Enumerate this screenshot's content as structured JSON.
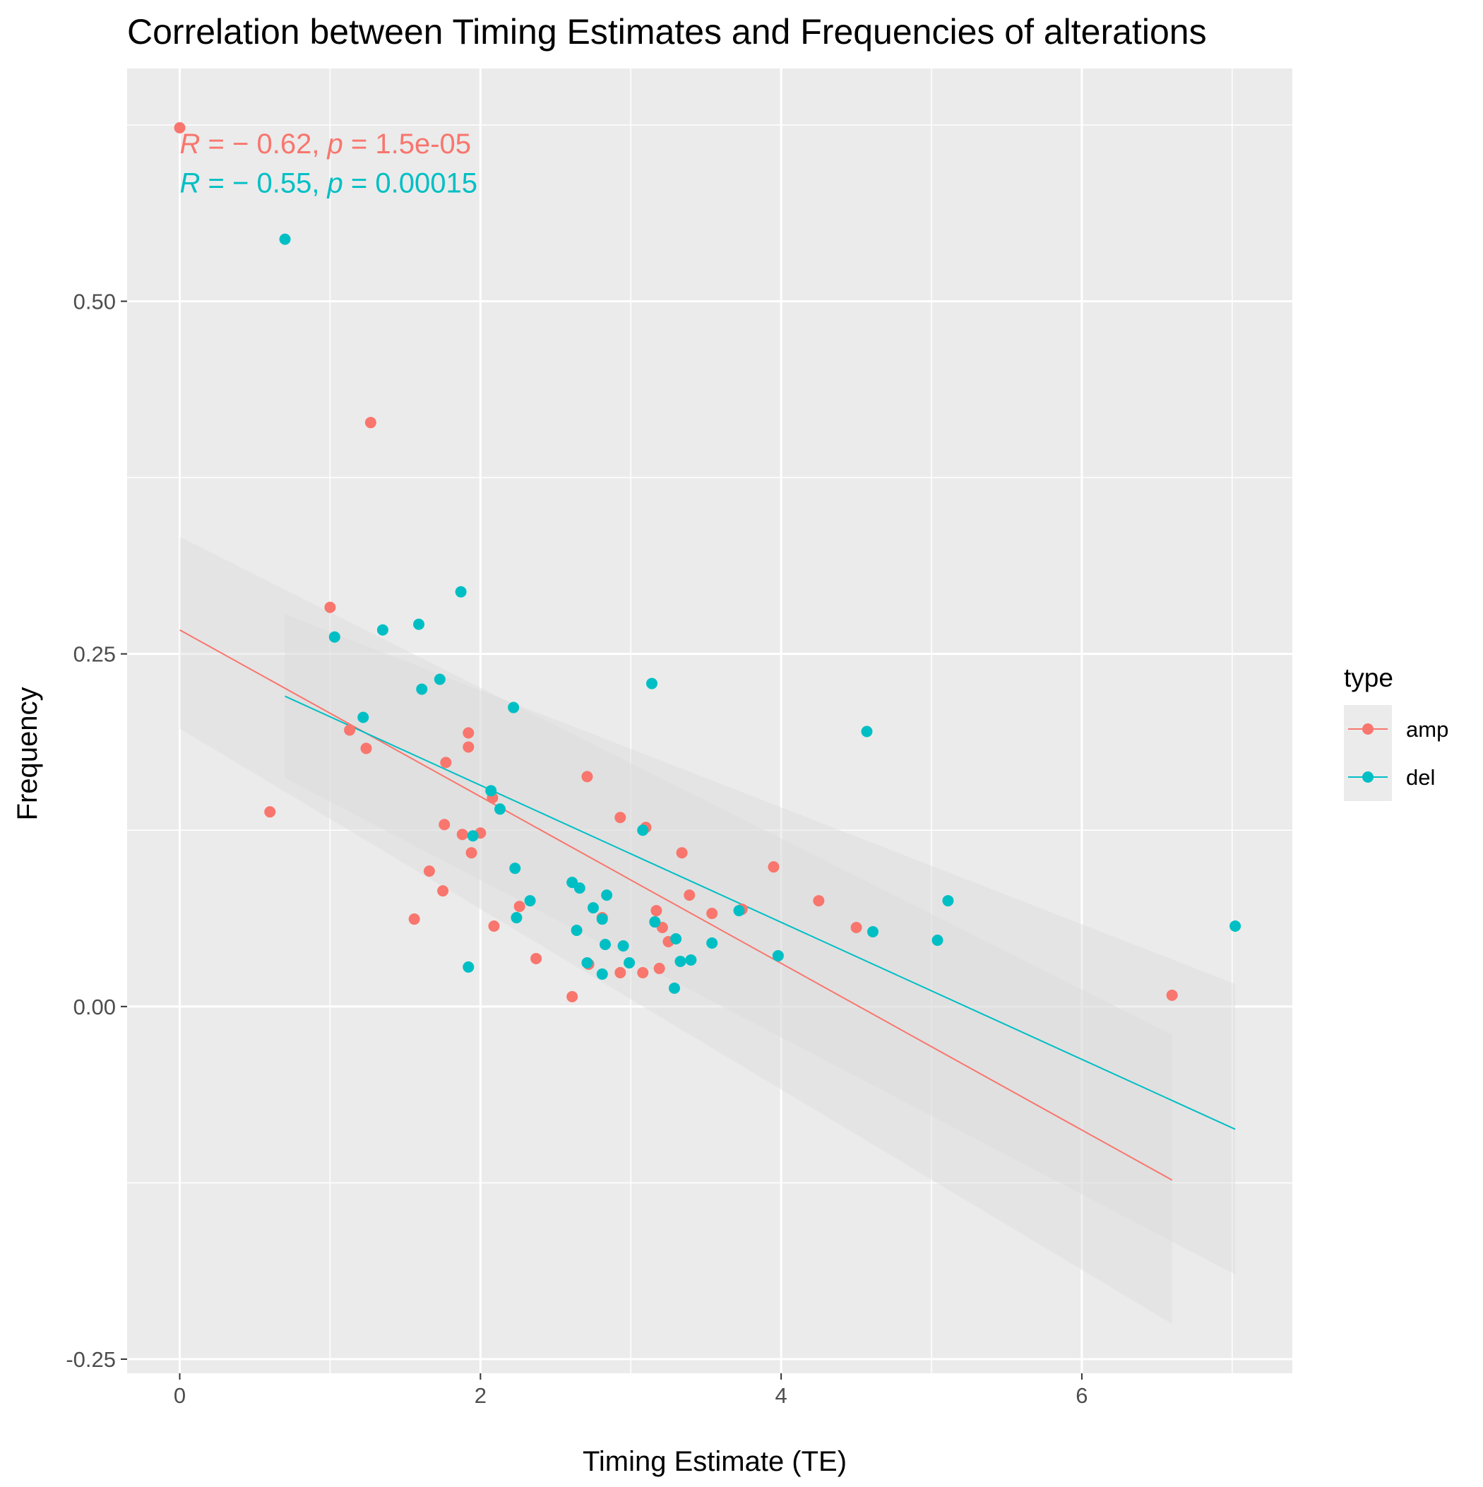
{
  "chart_data": {
    "type": "scatter",
    "title": "Correlation between Timing Estimates and Frequencies of alterations",
    "xlabel": "Timing Estimate (TE)",
    "ylabel": "Frequency",
    "xlim": [
      -0.35,
      7.4
    ],
    "ylim": [
      -0.26,
      0.665
    ],
    "x_ticks": [
      0,
      2,
      4,
      6
    ],
    "x_tick_labels": [
      "0",
      "2",
      "4",
      "6"
    ],
    "y_ticks": [
      -0.25,
      0,
      0.25,
      0.5
    ],
    "y_tick_labels": [
      "-0.25",
      "0.00",
      "0.25",
      "0.50"
    ],
    "grid": true,
    "legend": {
      "title": "type",
      "position": "right"
    },
    "colors": {
      "amp": "#F8766D",
      "del": "#00BFC4",
      "panel": "#EBEBEB",
      "ribbon": "#D9D9D9",
      "grid": "#FFFFFF"
    },
    "annotations": [
      {
        "series": "amp",
        "R": "R",
        "eq": " = − 0.62, ",
        "p": "p",
        "rest": " = 1.5e-05",
        "x": 0.0,
        "y": 0.605
      },
      {
        "series": "del",
        "R": "R",
        "eq": " = − 0.55, ",
        "p": "p",
        "rest": " = 0.00015",
        "x": 0.0,
        "y": 0.577
      }
    ],
    "series": [
      {
        "name": "amp",
        "color": "#F8766D",
        "fit": {
          "x": [
            0.0,
            6.6
          ],
          "y": [
            0.267,
            -0.123
          ],
          "ci_low": [
            0.197,
            -0.225
          ],
          "ci_high": [
            0.333,
            -0.02
          ]
        },
        "points": [
          [
            0.0,
            0.623
          ],
          [
            0.6,
            0.138
          ],
          [
            1.0,
            0.283
          ],
          [
            1.13,
            0.196
          ],
          [
            1.24,
            0.183
          ],
          [
            1.27,
            0.414
          ],
          [
            1.56,
            0.062
          ],
          [
            1.66,
            0.096
          ],
          [
            1.75,
            0.082
          ],
          [
            1.76,
            0.129
          ],
          [
            1.77,
            0.173
          ],
          [
            1.88,
            0.122
          ],
          [
            1.92,
            0.194
          ],
          [
            1.92,
            0.184
          ],
          [
            1.94,
            0.109
          ],
          [
            2.0,
            0.123
          ],
          [
            2.08,
            0.148
          ],
          [
            2.09,
            0.057
          ],
          [
            2.26,
            0.071
          ],
          [
            2.37,
            0.034
          ],
          [
            2.61,
            0.007
          ],
          [
            2.71,
            0.163
          ],
          [
            2.72,
            0.03
          ],
          [
            2.81,
            0.063
          ],
          [
            2.93,
            0.024
          ],
          [
            2.93,
            0.134
          ],
          [
            3.08,
            0.024
          ],
          [
            3.1,
            0.127
          ],
          [
            3.17,
            0.068
          ],
          [
            3.19,
            0.027
          ],
          [
            3.21,
            0.056
          ],
          [
            3.25,
            0.046
          ],
          [
            3.34,
            0.109
          ],
          [
            3.39,
            0.079
          ],
          [
            3.54,
            0.066
          ],
          [
            3.74,
            0.069
          ],
          [
            3.95,
            0.099
          ],
          [
            4.25,
            0.075
          ],
          [
            4.5,
            0.056
          ],
          [
            6.6,
            0.008
          ]
        ]
      },
      {
        "name": "del",
        "color": "#00BFC4",
        "fit": {
          "x": [
            0.7,
            7.02
          ],
          "y": [
            0.22,
            -0.087
          ],
          "ci_low": [
            0.162,
            -0.19
          ],
          "ci_high": [
            0.278,
            0.016
          ]
        },
        "points": [
          [
            0.7,
            0.544
          ],
          [
            1.03,
            0.262
          ],
          [
            1.22,
            0.205
          ],
          [
            1.35,
            0.267
          ],
          [
            1.59,
            0.271
          ],
          [
            1.61,
            0.225
          ],
          [
            1.73,
            0.232
          ],
          [
            1.87,
            0.294
          ],
          [
            1.92,
            0.028
          ],
          [
            1.95,
            0.121
          ],
          [
            2.07,
            0.153
          ],
          [
            2.13,
            0.14
          ],
          [
            2.22,
            0.212
          ],
          [
            2.23,
            0.098
          ],
          [
            2.24,
            0.063
          ],
          [
            2.33,
            0.075
          ],
          [
            2.61,
            0.088
          ],
          [
            2.64,
            0.054
          ],
          [
            2.66,
            0.084
          ],
          [
            2.71,
            0.031
          ],
          [
            2.75,
            0.07
          ],
          [
            2.81,
            0.062
          ],
          [
            2.81,
            0.023
          ],
          [
            2.83,
            0.044
          ],
          [
            2.84,
            0.079
          ],
          [
            2.95,
            0.043
          ],
          [
            2.99,
            0.031
          ],
          [
            3.08,
            0.125
          ],
          [
            3.14,
            0.229
          ],
          [
            3.16,
            0.06
          ],
          [
            3.29,
            0.013
          ],
          [
            3.3,
            0.048
          ],
          [
            3.33,
            0.032
          ],
          [
            3.4,
            0.033
          ],
          [
            3.54,
            0.045
          ],
          [
            3.72,
            0.068
          ],
          [
            3.98,
            0.036
          ],
          [
            4.57,
            0.195
          ],
          [
            4.61,
            0.053
          ],
          [
            5.04,
            0.047
          ],
          [
            5.11,
            0.075
          ],
          [
            7.02,
            0.057
          ]
        ]
      }
    ]
  }
}
